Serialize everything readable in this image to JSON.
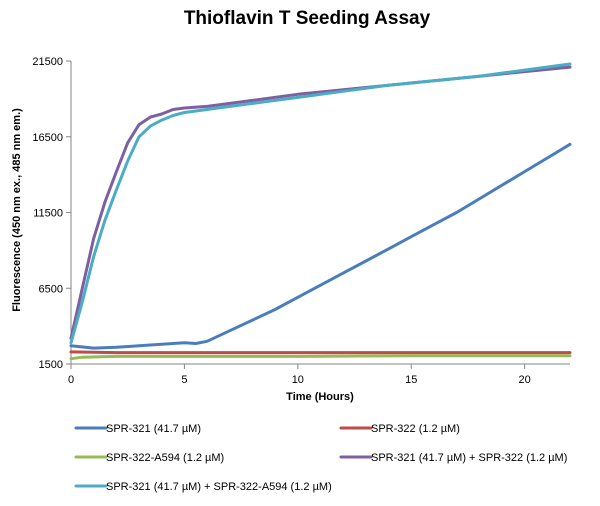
{
  "chart_data": {
    "type": "line",
    "title": "Thioflavin T Seeding Assay",
    "xlabel": "Time (Hours)",
    "ylabel": "Fluorescence (450 nm ex., 485 nm em.)",
    "xlim": [
      0,
      22
    ],
    "ylim": [
      1500,
      21500
    ],
    "xticks": [
      0,
      5,
      10,
      15,
      20
    ],
    "yticks": [
      1500,
      6500,
      11500,
      16500,
      21500
    ],
    "grid": false,
    "legend": "bottom",
    "series": [
      {
        "name": "SPR-321 (41.7 µM)",
        "color": "#4a7ebb",
        "x": [
          0,
          1,
          2,
          3,
          4,
          5,
          5.5,
          6,
          7,
          8,
          9,
          10,
          11,
          12,
          13,
          14,
          15,
          16,
          17,
          18,
          19,
          20,
          21,
          22
        ],
        "y": [
          2700,
          2550,
          2600,
          2700,
          2800,
          2900,
          2850,
          3000,
          3700,
          4400,
          5100,
          5900,
          6700,
          7500,
          8300,
          9100,
          9900,
          10700,
          11500,
          12400,
          13300,
          14200,
          15100,
          16000
        ]
      },
      {
        "name": "SPR-322 (1.2 µM)",
        "color": "#be4b48",
        "x": [
          0,
          2,
          5,
          10,
          15,
          20,
          22
        ],
        "y": [
          2300,
          2250,
          2250,
          2250,
          2250,
          2250,
          2250
        ]
      },
      {
        "name": "SPR-322-A594 (1.2 µM)",
        "color": "#98b954",
        "x": [
          0,
          0.5,
          2,
          5,
          10,
          15,
          20,
          22
        ],
        "y": [
          1850,
          1950,
          2000,
          2000,
          2000,
          2050,
          2050,
          2050
        ]
      },
      {
        "name": "SPR-321 (41.7 µM) + SPR-322 (1.2 µM)",
        "color": "#7d60a0",
        "x": [
          0,
          0.5,
          1,
          1.5,
          2,
          2.5,
          3,
          3.5,
          4,
          4.5,
          5,
          6,
          7,
          8,
          9,
          10,
          12,
          14,
          16,
          18,
          20,
          22
        ],
        "y": [
          3200,
          6500,
          9800,
          12200,
          14200,
          16100,
          17300,
          17800,
          18000,
          18300,
          18400,
          18500,
          18700,
          18900,
          19100,
          19300,
          19600,
          19900,
          20200,
          20500,
          20800,
          21100
        ]
      },
      {
        "name": "SPR-321 (41.7 µM) + SPR-322-A594 (1.2 µM)",
        "color": "#4bacc6",
        "x": [
          0,
          0.5,
          1,
          1.5,
          2,
          2.5,
          3,
          3.5,
          4,
          4.5,
          5,
          6,
          7,
          8,
          9,
          10,
          12,
          14,
          16,
          18,
          20,
          22
        ],
        "y": [
          2900,
          5600,
          8600,
          11000,
          13000,
          14900,
          16500,
          17200,
          17600,
          17900,
          18100,
          18300,
          18500,
          18700,
          18900,
          19100,
          19500,
          19900,
          20200,
          20500,
          20900,
          21300
        ]
      }
    ]
  }
}
